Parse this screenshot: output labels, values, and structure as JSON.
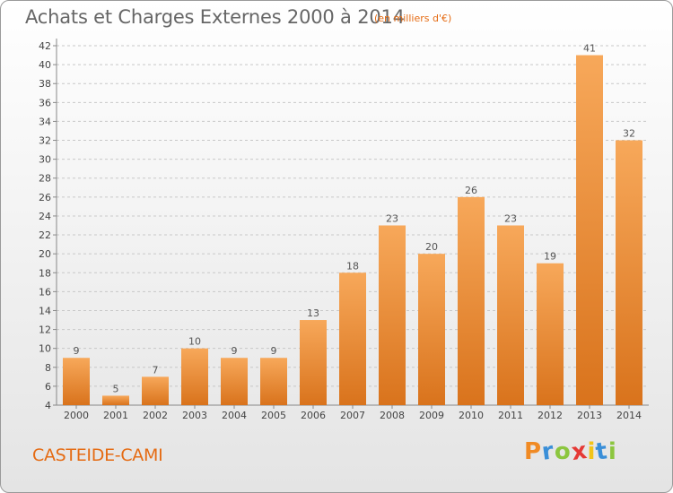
{
  "title": "Achats et Charges Externes 2000 à 2014",
  "subtitle": "(en milliers d'€)",
  "commune": "CASTEIDE-CAMI",
  "logo": {
    "letters": [
      "P",
      "r",
      "o",
      "x",
      "i",
      "t",
      "i"
    ],
    "colors": [
      "#f08a24",
      "#3a8fd8",
      "#8cc63f",
      "#e53935",
      "#f2c418",
      "#3a8fd8",
      "#8cc63f"
    ]
  },
  "colors": {
    "bar_light": "#f7a85a",
    "bar_dark": "#d9731c",
    "accent": "#e56b13"
  },
  "chart_data": {
    "type": "bar",
    "categories": [
      "2000",
      "2001",
      "2002",
      "2003",
      "2004",
      "2005",
      "2006",
      "2007",
      "2008",
      "2009",
      "2010",
      "2011",
      "2012",
      "2013",
      "2014"
    ],
    "values": [
      9,
      5,
      7,
      10,
      9,
      9,
      13,
      18,
      23,
      20,
      26,
      23,
      19,
      41,
      32
    ],
    "value_labels": [
      "9",
      "5",
      "7",
      "10",
      "9",
      "9",
      "13",
      "18",
      "23",
      "20",
      "26",
      "23",
      "19",
      "41",
      "32"
    ],
    "y_ticks": [
      4,
      6,
      8,
      10,
      12,
      14,
      16,
      18,
      20,
      22,
      24,
      26,
      28,
      30,
      32,
      34,
      36,
      38,
      40,
      42
    ],
    "ylim": [
      4,
      42
    ],
    "grid": true
  }
}
